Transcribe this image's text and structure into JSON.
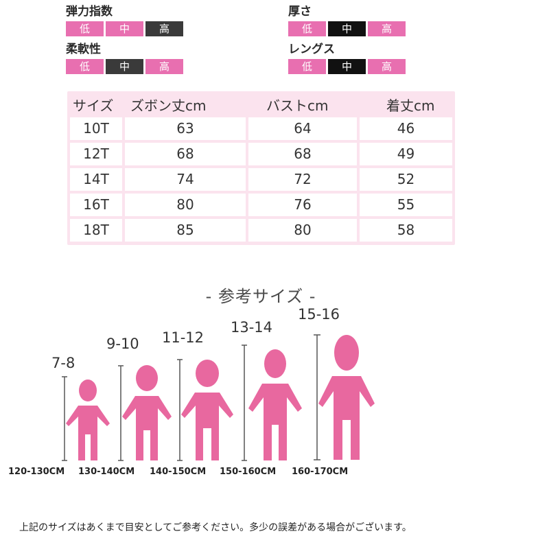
{
  "attributes": [
    {
      "title": "弾力指数",
      "levels": [
        "低",
        "中",
        "高"
      ],
      "selected": 2
    },
    {
      "title": "厚さ",
      "levels": [
        "低",
        "中",
        "高"
      ],
      "selected": 1
    },
    {
      "title": "柔軟性",
      "levels": [
        "低",
        "中",
        "高"
      ],
      "selected": 1
    },
    {
      "title": "レングス",
      "levels": [
        "低",
        "中",
        "高"
      ],
      "selected": 1
    }
  ],
  "colors": {
    "accent": "#e86fb0",
    "dark": "#3a3a3a",
    "black": "#111111",
    "table_bg": "#fbe3ee"
  },
  "size_table": {
    "headers": [
      "サイズ",
      "ズボン丈cm",
      "バストcm",
      "着丈cm"
    ],
    "rows": [
      [
        "10T",
        "63",
        "64",
        "46"
      ],
      [
        "12T",
        "68",
        "68",
        "49"
      ],
      [
        "14T",
        "74",
        "72",
        "52"
      ],
      [
        "16T",
        "80",
        "76",
        "55"
      ],
      [
        "18T",
        "85",
        "80",
        "58"
      ]
    ]
  },
  "reference": {
    "title": "- 参考サイズ -",
    "figures": [
      {
        "age": "7-8",
        "height": "120-130CM",
        "icon": "person-icon"
      },
      {
        "age": "9-10",
        "height": "130-140CM",
        "icon": "person-icon"
      },
      {
        "age": "11-12",
        "height": "140-150CM",
        "icon": "person-icon"
      },
      {
        "age": "13-14",
        "height": "150-160CM",
        "icon": "person-icon"
      },
      {
        "age": "15-16",
        "height": "160-170CM",
        "icon": "person-icon"
      }
    ]
  },
  "note": "上記のサイズはあくまで目安としてご参考ください。多少の誤差がある場合がございます。"
}
